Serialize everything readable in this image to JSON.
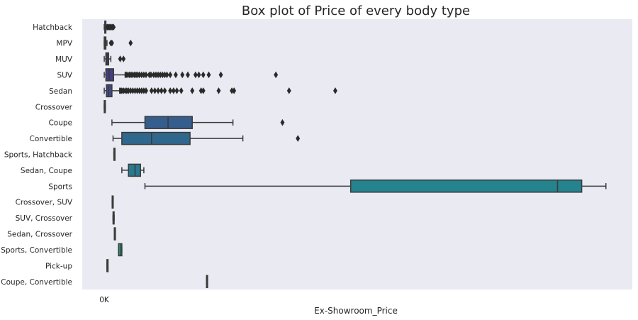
{
  "chart_data": {
    "type": "box",
    "orientation": "horizontal",
    "title": "Box plot of Price of every body type",
    "xlabel": "Ex-Showroom_Price",
    "ylabel": "",
    "x_tick_labels": [
      {
        "value": 0,
        "label": "0K"
      }
    ],
    "xlim": [
      -2000000,
      48000000
    ],
    "grid": false,
    "categories": [
      {
        "name": "Hatchback",
        "min": 0,
        "q1": 50000,
        "median": 100000,
        "q3": 150000,
        "max": 250000,
        "outliers": [
          300000,
          400000,
          500000,
          550000,
          650000,
          750000,
          850000
        ]
      },
      {
        "name": "MPV",
        "min": 0,
        "q1": 0,
        "median": 50000,
        "q3": 150000,
        "max": 250000,
        "outliers": [
          600000,
          700000,
          2400000
        ]
      },
      {
        "name": "MUV",
        "min": 0,
        "q1": 150000,
        "median": 250000,
        "q3": 400000,
        "max": 600000,
        "outliers": [
          1450000,
          1750000
        ]
      },
      {
        "name": "SUV",
        "min": 0,
        "q1": 150000,
        "median": 450000,
        "q3": 850000,
        "max": 1900000,
        "outliers": [
          2000000,
          2150000,
          2300000,
          2450000,
          2600000,
          2750000,
          2900000,
          3050000,
          3200000,
          3400000,
          3600000,
          3800000,
          4100000,
          4250000,
          4500000,
          4700000,
          4900000,
          5100000,
          5300000,
          5500000,
          5700000,
          6000000,
          6500000,
          7100000,
          7600000,
          8300000,
          8600000,
          9000000,
          9500000,
          10600000,
          15600000
        ]
      },
      {
        "name": "Sedan",
        "min": 0,
        "q1": 200000,
        "median": 400000,
        "q3": 700000,
        "max": 1400000,
        "outliers": [
          1500000,
          1600000,
          1750000,
          1900000,
          2050000,
          2200000,
          2400000,
          2600000,
          2800000,
          3000000,
          3200000,
          3400000,
          3600000,
          3800000,
          4300000,
          4600000,
          4900000,
          5200000,
          5500000,
          6000000,
          6300000,
          6600000,
          7000000,
          8000000,
          8800000,
          9000000,
          10400000,
          11600000,
          11800000,
          16800000,
          21000000
        ]
      },
      {
        "name": "Crossover",
        "min": 0,
        "q1": 0,
        "median": 50000,
        "q3": 100000,
        "max": 100000,
        "outliers": []
      },
      {
        "name": "Coupe",
        "min": 700000,
        "q1": 3700000,
        "median": 5800000,
        "q3": 8000000,
        "max": 11700000,
        "outliers": [
          16200000
        ]
      },
      {
        "name": "Convertible",
        "min": 800000,
        "q1": 1600000,
        "median": 4300000,
        "q3": 7800000,
        "max": 12600000,
        "outliers": [
          17600000
        ]
      },
      {
        "name": "Sports, Hatchback",
        "min": 880000,
        "q1": 880000,
        "median": 880000,
        "q3": 880000,
        "max": 880000,
        "outliers": []
      },
      {
        "name": "Sedan, Coupe",
        "min": 1600000,
        "q1": 2200000,
        "median": 2800000,
        "q3": 3300000,
        "max": 3600000,
        "outliers": []
      },
      {
        "name": "Sports",
        "min": 3700000,
        "q1": 22400000,
        "median": 41200000,
        "q3": 43400000,
        "max": 45600000,
        "outliers": []
      },
      {
        "name": "Crossover, SUV",
        "min": 720000,
        "q1": 720000,
        "median": 760000,
        "q3": 800000,
        "max": 800000,
        "outliers": []
      },
      {
        "name": "SUV, Crossover",
        "min": 800000,
        "q1": 800000,
        "median": 820000,
        "q3": 900000,
        "max": 900000,
        "outliers": []
      },
      {
        "name": "Sedan, Crossover",
        "min": 920000,
        "q1": 920000,
        "median": 920000,
        "q3": 920000,
        "max": 920000,
        "outliers": []
      },
      {
        "name": "Sports, Convertible",
        "min": 1300000,
        "q1": 1300000,
        "median": 1450000,
        "q3": 1600000,
        "max": 1600000,
        "outliers": []
      },
      {
        "name": "Pick-up",
        "min": 250000,
        "q1": 250000,
        "median": 250000,
        "q3": 300000,
        "max": 300000,
        "outliers": []
      },
      {
        "name": "Coupe, Convertible",
        "min": 9300000,
        "q1": 9300000,
        "median": 9300000,
        "q3": 9300000,
        "max": 9300000,
        "outliers": []
      }
    ],
    "colors": [
      "#3b1f57",
      "#412a6a",
      "#433479",
      "#433f83",
      "#3f4a88",
      "#3b548b",
      "#355e8d",
      "#30688d",
      "#2c718e",
      "#287a8e",
      "#25838e",
      "#218c8d",
      "#1f958b",
      "#1f9e88",
      "#24a784",
      "#31b07d",
      "#42b974"
    ],
    "background": "#eaeaf2",
    "edge_color": "#3a3a3a"
  }
}
